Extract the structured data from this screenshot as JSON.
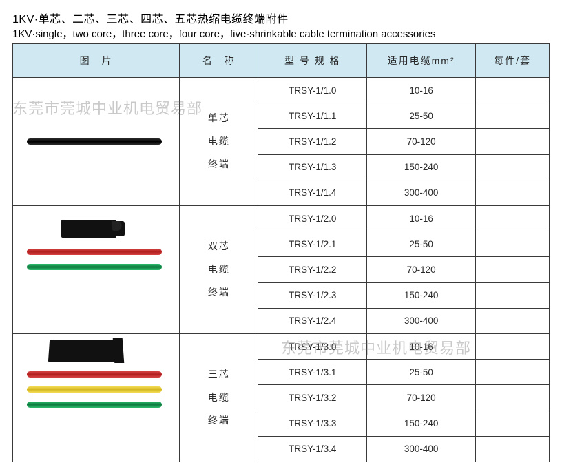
{
  "title_cn": "1KV·单芯、二芯、三芯、四芯、五芯热缩电缆终端附件",
  "title_en": "1KV·single，two core，three core，four core，five-shrinkable cable termination accessories",
  "headers": {
    "pic": "图　片",
    "name": "名　称",
    "model": "型 号 规 格",
    "cable": "适用电缆mm²",
    "set": "每件/套"
  },
  "watermark": "东莞市莞城中业机电贸易部",
  "groups": [
    {
      "name_lines": [
        "单芯",
        "电缆",
        "终端"
      ],
      "pic_colors": [
        "black"
      ],
      "pic_boot": "none",
      "rows": [
        {
          "model": "TRSY-1/1.0",
          "cable": "10-16"
        },
        {
          "model": "TRSY-1/1.1",
          "cable": "25-50"
        },
        {
          "model": "TRSY-1/1.2",
          "cable": "70-120"
        },
        {
          "model": "TRSY-1/1.3",
          "cable": "150-240"
        },
        {
          "model": "TRSY-1/1.4",
          "cable": "300-400"
        }
      ]
    },
    {
      "name_lines": [
        "双芯",
        "电缆",
        "终端"
      ],
      "pic_colors": [
        "red",
        "green"
      ],
      "pic_boot": "boot2",
      "rows": [
        {
          "model": "TRSY-1/2.0",
          "cable": "10-16"
        },
        {
          "model": "TRSY-1/2.1",
          "cable": "25-50"
        },
        {
          "model": "TRSY-1/2.2",
          "cable": "70-120"
        },
        {
          "model": "TRSY-1/2.3",
          "cable": "150-240"
        },
        {
          "model": "TRSY-1/2.4",
          "cable": "300-400"
        }
      ]
    },
    {
      "name_lines": [
        "三芯",
        "电缆",
        "终端"
      ],
      "pic_colors": [
        "red",
        "yellow",
        "green"
      ],
      "pic_boot": "boot3",
      "rows": [
        {
          "model": "TRSY-1/3.0",
          "cable": "10-16"
        },
        {
          "model": "TRSY-1/3.1",
          "cable": "25-50"
        },
        {
          "model": "TRSY-1/3.2",
          "cable": "70-120"
        },
        {
          "model": "TRSY-1/3.3",
          "cable": "150-240"
        },
        {
          "model": "TRSY-1/3.4",
          "cable": "300-400"
        }
      ]
    }
  ]
}
